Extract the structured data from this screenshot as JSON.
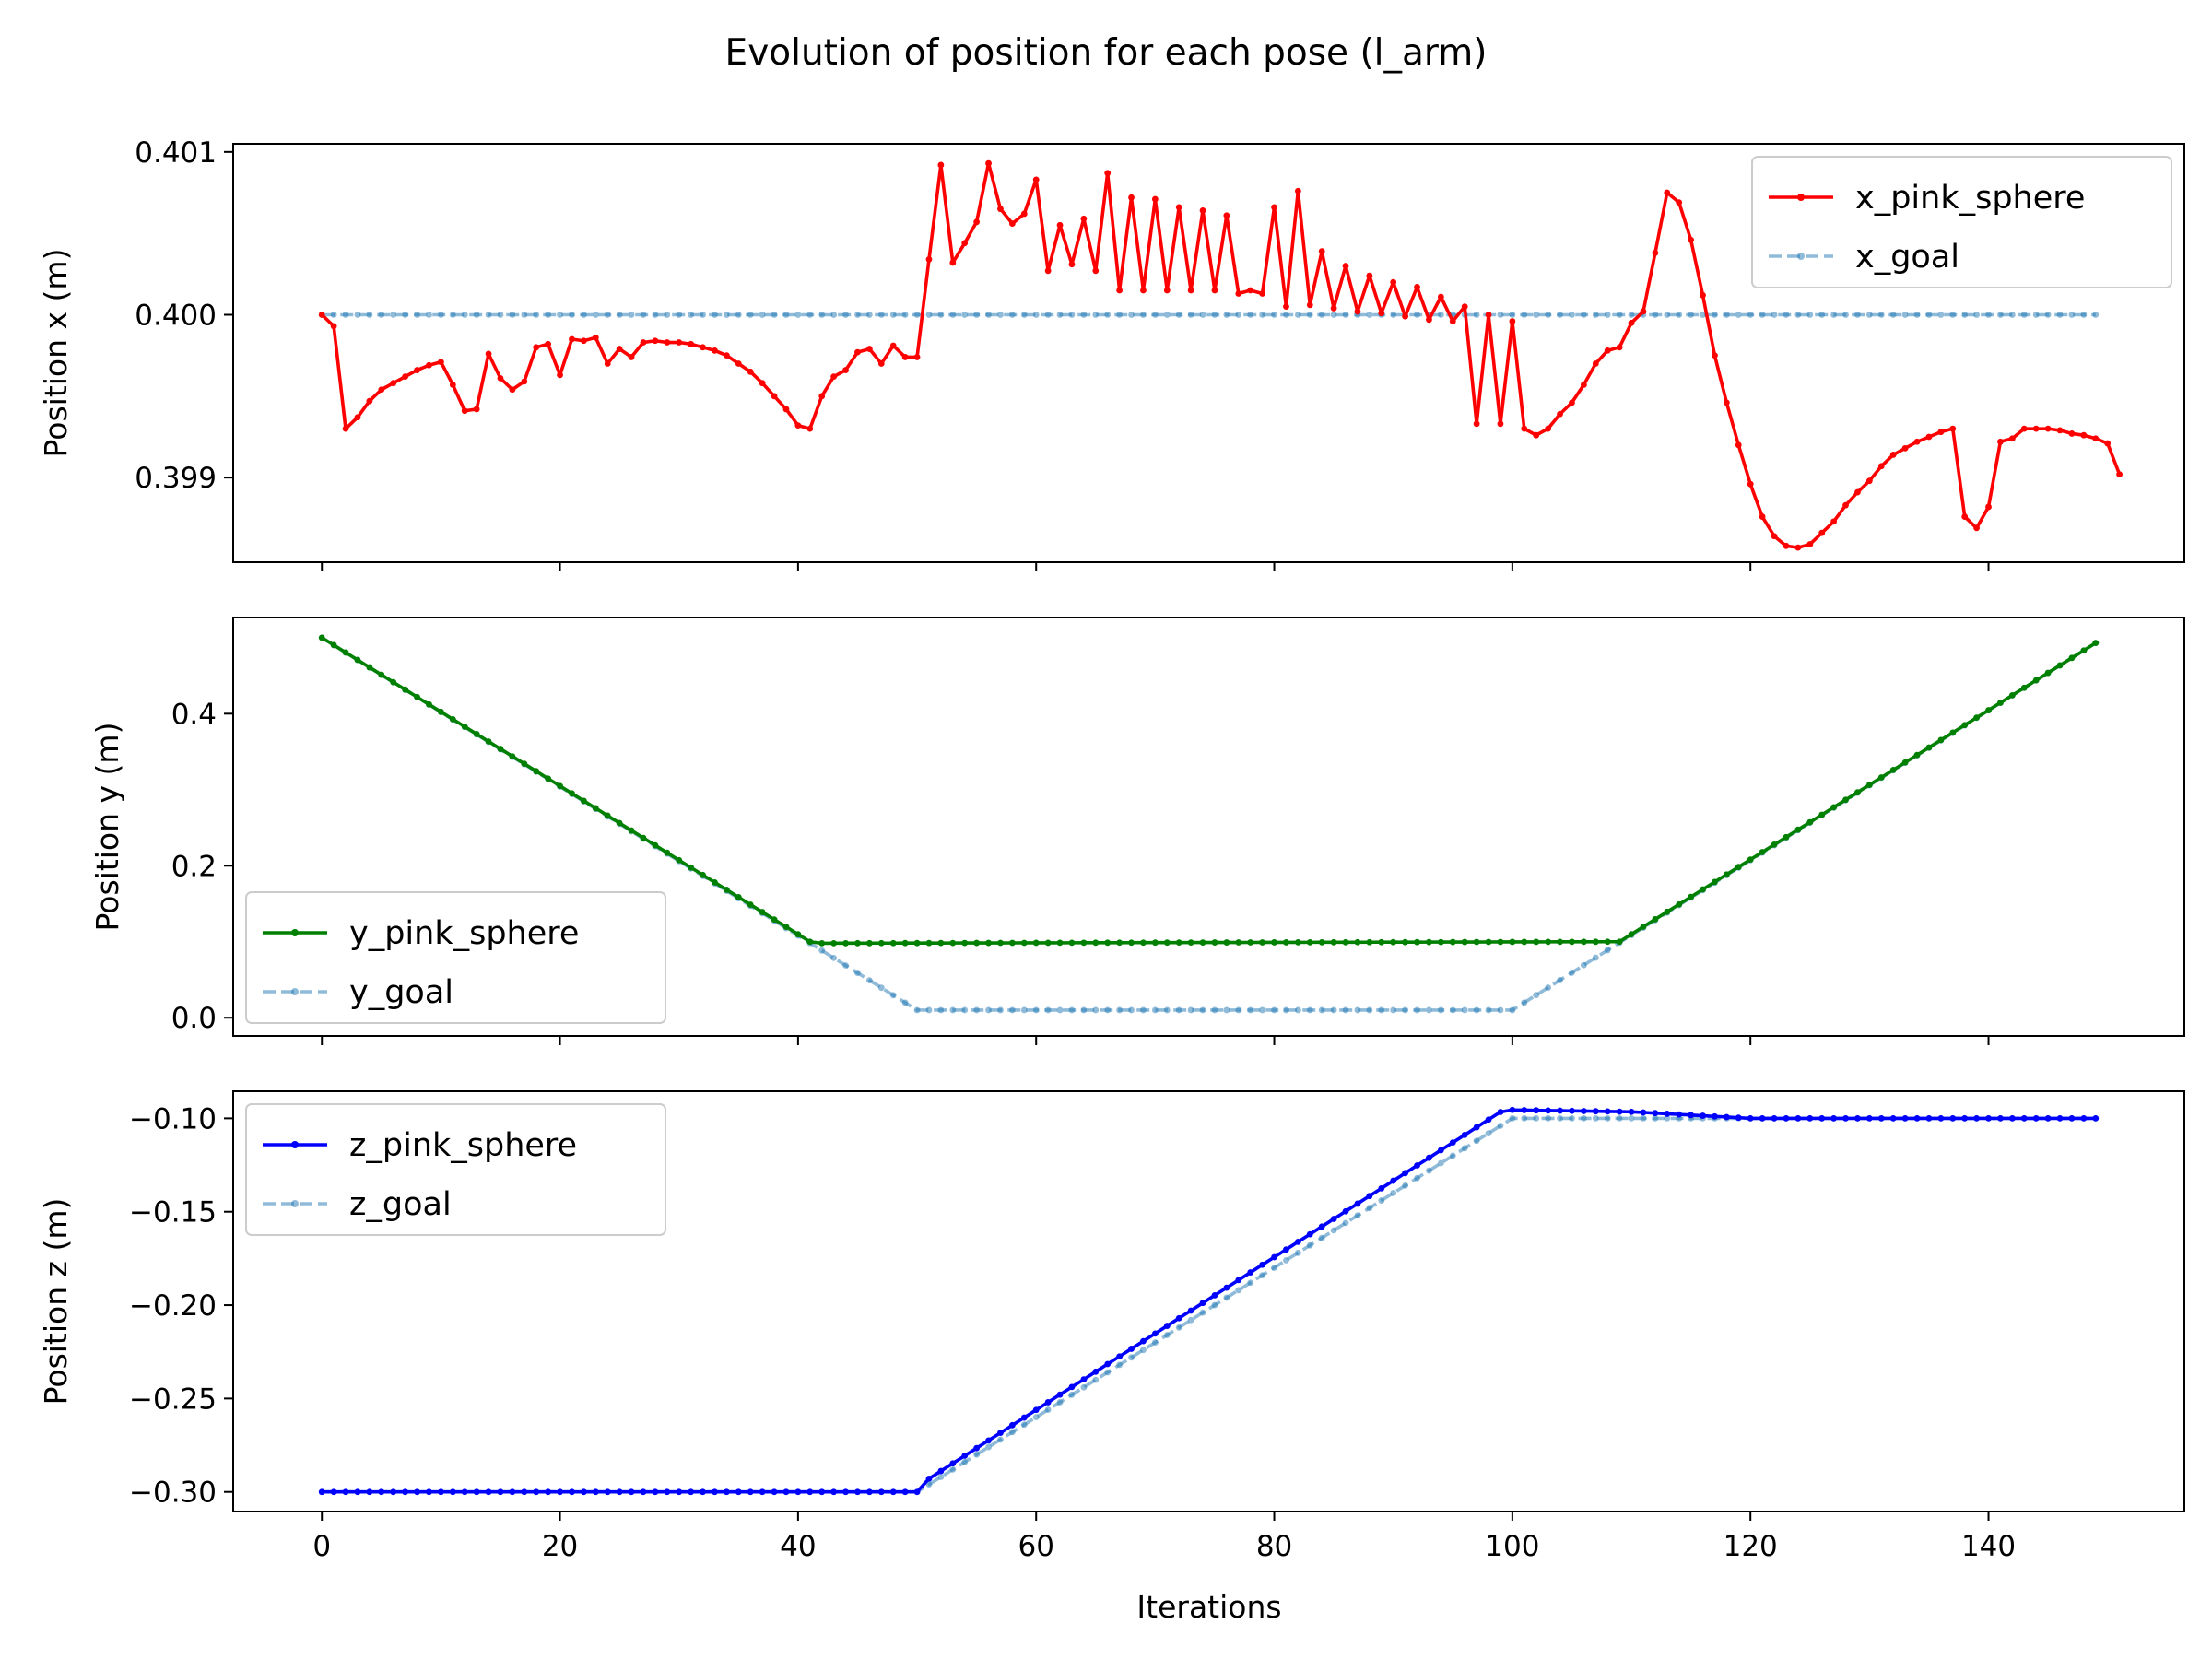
{
  "title": "Evolution of position for each pose (l_arm)",
  "xlabel": "Iterations",
  "x_ticks": [
    0,
    20,
    40,
    60,
    80,
    100,
    120,
    140
  ],
  "chart_data": [
    {
      "type": "line",
      "ylabel": "Position x (m)",
      "xlim": [
        -7.45,
        156.45
      ],
      "ylim": [
        0.39848,
        0.40105
      ],
      "y_ticks": [
        0.399,
        0.4,
        0.401
      ],
      "y_tick_labels": [
        "0.399",
        "0.400",
        "0.401"
      ],
      "grid": false,
      "legend_position": "top-right",
      "series": [
        {
          "name": "x_pink_sphere",
          "color": "#ff0000",
          "style": "solid",
          "x_start": 0,
          "values": [
            0.4,
            0.39993,
            0.3993,
            0.39937,
            0.39947,
            0.39954,
            0.39958,
            0.39962,
            0.39966,
            0.39969,
            0.39971,
            0.39957,
            0.39941,
            0.39942,
            0.39976,
            0.39961,
            0.39954,
            0.39959,
            0.3998,
            0.39982,
            0.39963,
            0.39985,
            0.39984,
            0.39986,
            0.3997,
            0.39979,
            0.39974,
            0.39983,
            0.39984,
            0.39983,
            0.39983,
            0.39982,
            0.3998,
            0.39978,
            0.39975,
            0.3997,
            0.39965,
            0.39958,
            0.3995,
            0.39942,
            0.39932,
            0.3993,
            0.3995,
            0.39962,
            0.39966,
            0.39977,
            0.39979,
            0.3997,
            0.39981,
            0.39974,
            0.39974,
            0.40034,
            0.40092,
            0.40032,
            0.40044,
            0.40057,
            0.40093,
            0.40065,
            0.40056,
            0.40062,
            0.40083,
            0.40027,
            0.40055,
            0.40031,
            0.40059,
            0.40027,
            0.40087,
            0.40015,
            0.40072,
            0.40015,
            0.40071,
            0.40015,
            0.40066,
            0.40015,
            0.40064,
            0.40015,
            0.40061,
            0.40013,
            0.40015,
            0.40013,
            0.40066,
            0.40005,
            0.40076,
            0.40006,
            0.40039,
            0.40004,
            0.4003,
            0.40002,
            0.40024,
            0.40001,
            0.4002,
            0.39999,
            0.40017,
            0.39997,
            0.40011,
            0.39996,
            0.40005,
            0.39933,
            0.4,
            0.39933,
            0.39996,
            0.3993,
            0.39926,
            0.3993,
            0.39939,
            0.39946,
            0.39957,
            0.3997,
            0.39978,
            0.3998,
            0.39995,
            0.40002,
            0.40038,
            0.40075,
            0.40069,
            0.40046,
            0.40012,
            0.39975,
            0.39946,
            0.3992,
            0.39896,
            0.39876,
            0.39864,
            0.39858,
            0.39857,
            0.39859,
            0.39866,
            0.39873,
            0.39883,
            0.39891,
            0.39898,
            0.39907,
            0.39914,
            0.39918,
            0.39922,
            0.39925,
            0.39928,
            0.3993,
            0.39876,
            0.39869,
            0.39882,
            0.39922,
            0.39924,
            0.3993,
            0.3993,
            0.3993,
            0.39929,
            0.39927,
            0.39926,
            0.39924,
            0.39921,
            0.39902
          ]
        },
        {
          "name": "x_goal",
          "color": "#1f77b4",
          "style": "dashed",
          "x_start": 0,
          "constant": 0.4,
          "count": 150
        }
      ]
    },
    {
      "type": "line",
      "ylabel": "Position y (m)",
      "xlim": [
        -7.45,
        156.45
      ],
      "ylim": [
        -0.024,
        0.5265
      ],
      "y_ticks": [
        0.0,
        0.2,
        0.4
      ],
      "y_tick_labels": [
        "0.0",
        "0.2",
        "0.4"
      ],
      "grid": false,
      "legend_position": "bottom-left",
      "series": [
        {
          "name": "y_pink_sphere",
          "color": "#008000",
          "style": "solid",
          "piecewise": [
            [
              0,
              0.5
            ],
            [
              41,
              0.1
            ],
            [
              42,
              0.098
            ],
            [
              109,
              0.1
            ],
            [
              149,
              0.493
            ]
          ]
        },
        {
          "name": "y_goal",
          "color": "#1f77b4",
          "style": "dashed",
          "piecewise": [
            [
              0,
              0.5
            ],
            [
              50,
              0.01
            ],
            [
              100,
              0.01
            ],
            [
              149,
              0.493
            ]
          ]
        }
      ]
    },
    {
      "type": "line",
      "ylabel": "Position z (m)",
      "xlim": [
        -7.45,
        156.45
      ],
      "ylim": [
        -0.3105,
        -0.0855
      ],
      "y_ticks": [
        -0.3,
        -0.25,
        -0.2,
        -0.15,
        -0.1
      ],
      "y_tick_labels": [
        "−0.30",
        "−0.25",
        "−0.20",
        "−0.15",
        "−0.10"
      ],
      "grid": false,
      "legend_position": "top-left",
      "series": [
        {
          "name": "z_pink_sphere",
          "color": "#0000ff",
          "style": "solid",
          "piecewise": [
            [
              0,
              -0.3
            ],
            [
              50,
              -0.3
            ],
            [
              100,
              -0.0955
            ],
            [
              110,
              -0.0965
            ],
            [
              120,
              -0.1
            ],
            [
              149,
              -0.1
            ]
          ],
          "lead": 0.003
        },
        {
          "name": "z_goal",
          "color": "#1f77b4",
          "style": "dashed",
          "piecewise": [
            [
              0,
              -0.3
            ],
            [
              50,
              -0.3
            ],
            [
              100,
              -0.1
            ],
            [
              149,
              -0.1
            ]
          ]
        }
      ]
    }
  ]
}
